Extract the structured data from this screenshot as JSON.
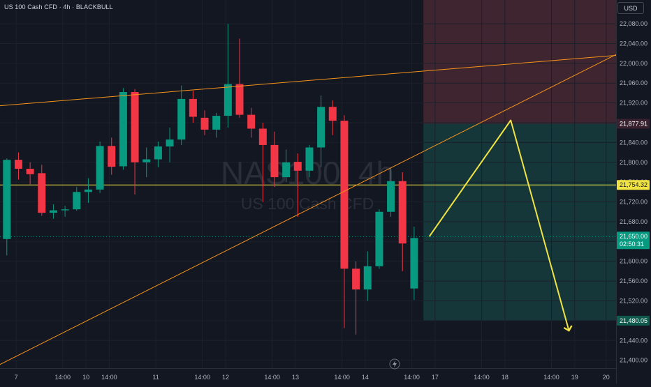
{
  "header": {
    "title": "US 100 Cash CFD · 4h · BLACKBULL",
    "currency_button": "USD"
  },
  "watermark": {
    "symbol": "NAS100, 4h",
    "description": "US 100 Cash CFD"
  },
  "colors": {
    "background": "#131722",
    "bull": "#089981",
    "bear": "#f23645",
    "trendline": "#f7931a",
    "projection": "#f0e442",
    "level_line": "#f0e442",
    "stop_zone": "#3f2530",
    "target_zone": "#15373a"
  },
  "icons": {
    "time_axis_button": "lightning-icon"
  },
  "price_labels": {
    "stop": "21,877.91",
    "level": "21,754.32",
    "current": "21,650.00",
    "countdown": "02:50:31",
    "target": "21,480.05"
  },
  "chart_data": {
    "type": "candlestick",
    "interval": "4h",
    "y_axis": {
      "min": 21384,
      "max": 22128,
      "ticks": [
        21400,
        21440,
        21480,
        21520,
        21560,
        21600,
        21640,
        21680,
        21720,
        21760,
        21800,
        21840,
        21880,
        21920,
        21960,
        22000,
        22040,
        22080
      ],
      "tick_labels": [
        "21,400.00",
        "21,440.00",
        "21,480.00",
        "21,520.00",
        "21,560.00",
        "21,600.00",
        "21,640.00",
        "21,680.00",
        "21,720.00",
        "21,760.00",
        "21,800.00",
        "21,840.00",
        "21,880.00",
        "21,920.00",
        "21,960.00",
        "22,000.00",
        "22,040.00",
        "22,080.00"
      ]
    },
    "x_axis": {
      "ticks": [
        {
          "index": 0.8,
          "label": "7"
        },
        {
          "index": 4.8,
          "label": "14:00"
        },
        {
          "index": 6.8,
          "label": "10"
        },
        {
          "index": 8.8,
          "label": "14:00"
        },
        {
          "index": 12.8,
          "label": "11"
        },
        {
          "index": 16.8,
          "label": "14:00"
        },
        {
          "index": 18.8,
          "label": "12"
        },
        {
          "index": 22.8,
          "label": "14:00"
        },
        {
          "index": 24.8,
          "label": "13"
        },
        {
          "index": 28.8,
          "label": "14:00"
        },
        {
          "index": 30.8,
          "label": "14"
        },
        {
          "index": 34.8,
          "label": "14:00"
        },
        {
          "index": 36.8,
          "label": "17"
        },
        {
          "index": 40.8,
          "label": "14:00"
        },
        {
          "index": 42.8,
          "label": "18"
        },
        {
          "index": 46.8,
          "label": "14:00"
        },
        {
          "index": 48.8,
          "label": "19"
        },
        {
          "index": 51.5,
          "label": "20"
        }
      ]
    },
    "candles": [
      {
        "o": 21645,
        "h": 21808,
        "l": 21612,
        "c": 21805
      },
      {
        "o": 21805,
        "h": 21820,
        "l": 21765,
        "c": 21787
      },
      {
        "o": 21787,
        "h": 21800,
        "l": 21755,
        "c": 21776
      },
      {
        "o": 21778,
        "h": 21795,
        "l": 21692,
        "c": 21698
      },
      {
        "o": 21698,
        "h": 21715,
        "l": 21686,
        "c": 21703
      },
      {
        "o": 21703,
        "h": 21712,
        "l": 21690,
        "c": 21705
      },
      {
        "o": 21705,
        "h": 21750,
        "l": 21702,
        "c": 21740
      },
      {
        "o": 21740,
        "h": 21768,
        "l": 21718,
        "c": 21745
      },
      {
        "o": 21745,
        "h": 21842,
        "l": 21738,
        "c": 21833
      },
      {
        "o": 21833,
        "h": 21850,
        "l": 21775,
        "c": 21791
      },
      {
        "o": 21792,
        "h": 21950,
        "l": 21785,
        "c": 21942
      },
      {
        "o": 21942,
        "h": 21948,
        "l": 21735,
        "c": 21800
      },
      {
        "o": 21800,
        "h": 21830,
        "l": 21770,
        "c": 21806
      },
      {
        "o": 21806,
        "h": 21842,
        "l": 21790,
        "c": 21832
      },
      {
        "o": 21832,
        "h": 21870,
        "l": 21800,
        "c": 21846
      },
      {
        "o": 21846,
        "h": 21955,
        "l": 21835,
        "c": 21928
      },
      {
        "o": 21928,
        "h": 21945,
        "l": 21880,
        "c": 21892
      },
      {
        "o": 21890,
        "h": 21905,
        "l": 21855,
        "c": 21866
      },
      {
        "o": 21866,
        "h": 21900,
        "l": 21850,
        "c": 21894
      },
      {
        "o": 21894,
        "h": 22080,
        "l": 21870,
        "c": 21958
      },
      {
        "o": 21958,
        "h": 22050,
        "l": 21890,
        "c": 21896
      },
      {
        "o": 21896,
        "h": 21910,
        "l": 21850,
        "c": 21868
      },
      {
        "o": 21868,
        "h": 21880,
        "l": 21720,
        "c": 21835
      },
      {
        "o": 21835,
        "h": 21862,
        "l": 21750,
        "c": 21770
      },
      {
        "o": 21770,
        "h": 21826,
        "l": 21760,
        "c": 21800
      },
      {
        "o": 21801,
        "h": 21818,
        "l": 21690,
        "c": 21783
      },
      {
        "o": 21783,
        "h": 21835,
        "l": 21770,
        "c": 21830
      },
      {
        "o": 21830,
        "h": 21935,
        "l": 21790,
        "c": 21912
      },
      {
        "o": 21912,
        "h": 21925,
        "l": 21855,
        "c": 21884
      },
      {
        "o": 21884,
        "h": 21895,
        "l": 21465,
        "c": 21585
      },
      {
        "o": 21585,
        "h": 21600,
        "l": 21452,
        "c": 21543
      },
      {
        "o": 21543,
        "h": 21620,
        "l": 21520,
        "c": 21590
      },
      {
        "o": 21590,
        "h": 21705,
        "l": 21585,
        "c": 21700
      },
      {
        "o": 21700,
        "h": 21788,
        "l": 21690,
        "c": 21762
      },
      {
        "o": 21762,
        "h": 21780,
        "l": 21580,
        "c": 21636
      },
      {
        "o": 21545,
        "h": 21670,
        "l": 21522,
        "c": 21647
      }
    ],
    "drawings": {
      "stop_zone": {
        "from_index": 35.8,
        "top_price": 22200,
        "bottom_price": 21877.91
      },
      "target_zone": {
        "from_index": 35.8,
        "top_price": 21877.91,
        "bottom_price": 21480.05
      },
      "horizontal_level": 21754.32,
      "current_price_line": 21650.0,
      "trendline_upper": [
        {
          "x": -0.8,
          "y": 21914
        },
        {
          "x": 54.4,
          "y": 22020
        }
      ],
      "trendline_lower": [
        {
          "x": -0.8,
          "y": 21389
        },
        {
          "x": 54.4,
          "y": 22042
        }
      ],
      "projection_path": [
        {
          "x": 36.3,
          "y": 21650
        },
        {
          "x": 43.3,
          "y": 21885
        },
        {
          "x": 48.3,
          "y": 21460
        }
      ]
    }
  }
}
